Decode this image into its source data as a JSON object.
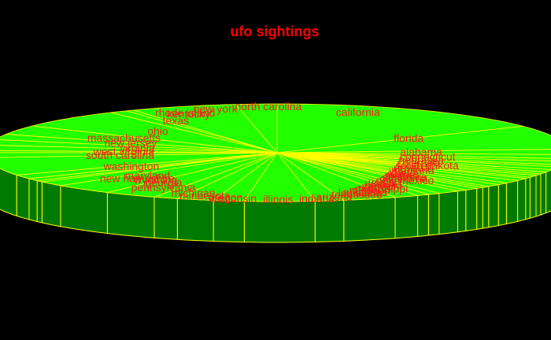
{
  "colors": {
    "background": "#000000",
    "top": "#22ff00",
    "side": "#007a00",
    "edge": "#ffff00",
    "label": "#ff1a1a",
    "title": "#ff0000"
  },
  "chart_data": {
    "type": "pie",
    "style": "3d",
    "title": "ufo sightings",
    "slices": [
      {
        "label": "california",
        "value": 1400
      },
      {
        "label": "florida",
        "value": 700
      },
      {
        "label": "alabama",
        "value": 160
      },
      {
        "label": "connecticut",
        "value": 120
      },
      {
        "label": "nebraska",
        "value": 80
      },
      {
        "label": "colorado",
        "value": 95
      },
      {
        "label": "south dakota",
        "value": 60
      },
      {
        "label": "nevada",
        "value": 90
      },
      {
        "label": "montana",
        "value": 70
      },
      {
        "label": "idaho",
        "value": 60
      },
      {
        "label": "alaska",
        "value": 50
      },
      {
        "label": "maine",
        "value": 60
      },
      {
        "label": "delaware",
        "value": 40
      },
      {
        "label": "oklahoma",
        "value": 70
      },
      {
        "label": "new mexico",
        "value": 90
      },
      {
        "label": "iowa",
        "value": 60
      },
      {
        "label": "kansas",
        "value": 70
      },
      {
        "label": "hawaii",
        "value": 40
      },
      {
        "label": "vermont",
        "value": 40
      },
      {
        "label": "utah",
        "value": 70
      },
      {
        "label": "mississippi",
        "value": 50
      },
      {
        "label": "missouri",
        "value": 110
      },
      {
        "label": "arkansas",
        "value": 60
      },
      {
        "label": "louisiana",
        "value": 60
      },
      {
        "label": "tennessee",
        "value": 120
      },
      {
        "label": "arizona",
        "value": 260
      },
      {
        "label": "indiana",
        "value": 140
      },
      {
        "label": "illinois",
        "value": 340
      },
      {
        "label": "wisconsin",
        "value": 150
      },
      {
        "label": "oregon",
        "value": 180
      },
      {
        "label": "minnesota",
        "value": 120
      },
      {
        "label": "michigan",
        "value": 260
      },
      {
        "label": "pennsylvania",
        "value": 300
      },
      {
        "label": "georgia",
        "value": 140
      },
      {
        "label": "wyoming",
        "value": 40
      },
      {
        "label": "new hampshire",
        "value": 70
      },
      {
        "label": "maryland",
        "value": 120
      },
      {
        "label": "washington",
        "value": 520
      },
      {
        "label": "south carolina",
        "value": 150
      },
      {
        "label": "west virginia",
        "value": 60
      },
      {
        "label": "virginia",
        "value": 160
      },
      {
        "label": "new jersey",
        "value": 160
      },
      {
        "label": "massachusetts",
        "value": 160
      },
      {
        "label": "ohio",
        "value": 270
      },
      {
        "label": "texas",
        "value": 540
      },
      {
        "label": "kentucky",
        "value": 90
      },
      {
        "label": "rhode island",
        "value": 40
      },
      {
        "label": "new york",
        "value": 520
      },
      {
        "label": "north carolina",
        "value": 200
      }
    ]
  }
}
